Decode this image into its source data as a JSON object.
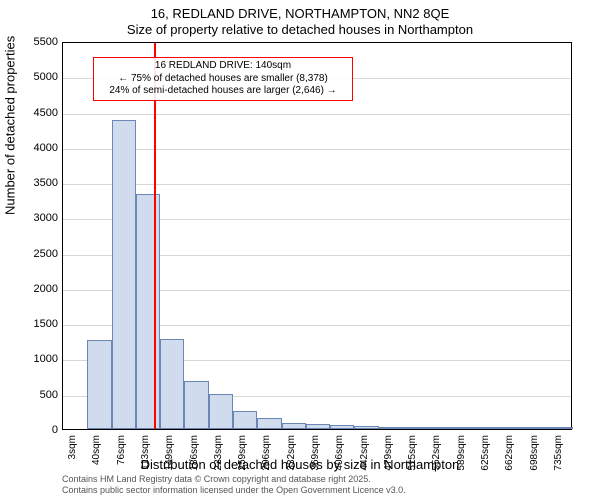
{
  "chart": {
    "type": "histogram",
    "title_main": "16, REDLAND DRIVE, NORTHAMPTON, NN2 8QE",
    "title_sub": "Size of property relative to detached houses in Northampton",
    "title_fontsize": 13,
    "xlabel": "Distribution of detached houses by size in Northampton",
    "ylabel": "Number of detached properties",
    "label_fontsize": 13,
    "background_color": "#ffffff",
    "plot_border_color": "#000000",
    "grid_color": "#d7d7d7",
    "bar_fill_color": "#d0dbed",
    "bar_border_color": "#6a86b5",
    "reference_line_color": "#ff0000",
    "annotation_border_color": "#ff0000",
    "ylim": [
      0,
      5500
    ],
    "ytick_step": 500,
    "yticks": [
      0,
      500,
      1000,
      1500,
      2000,
      2500,
      3000,
      3500,
      4000,
      4500,
      5000,
      5500
    ],
    "x_categories": [
      "3sqm",
      "40sqm",
      "76sqm",
      "113sqm",
      "149sqm",
      "186sqm",
      "223sqm",
      "259sqm",
      "296sqm",
      "332sqm",
      "369sqm",
      "406sqm",
      "442sqm",
      "479sqm",
      "515sqm",
      "552sqm",
      "589sqm",
      "625sqm",
      "662sqm",
      "698sqm",
      "735sqm"
    ],
    "bar_values": [
      0,
      1260,
      4380,
      3330,
      1270,
      680,
      490,
      260,
      150,
      90,
      70,
      60,
      40,
      30,
      20,
      25,
      20,
      15,
      10,
      10,
      10
    ],
    "bar_width": 1.0,
    "reference_x_index": 3.74,
    "annotation": {
      "line1": "16 REDLAND DRIVE: 140sqm",
      "line2": "← 75% of detached houses are smaller (8,378)",
      "line3": "24% of semi-detached houses are larger (2,646) →"
    },
    "attribution_line1": "Contains HM Land Registry data © Crown copyright and database right 2025.",
    "attribution_line2": "Contains public sector information licensed under the Open Government Licence v3.0."
  }
}
